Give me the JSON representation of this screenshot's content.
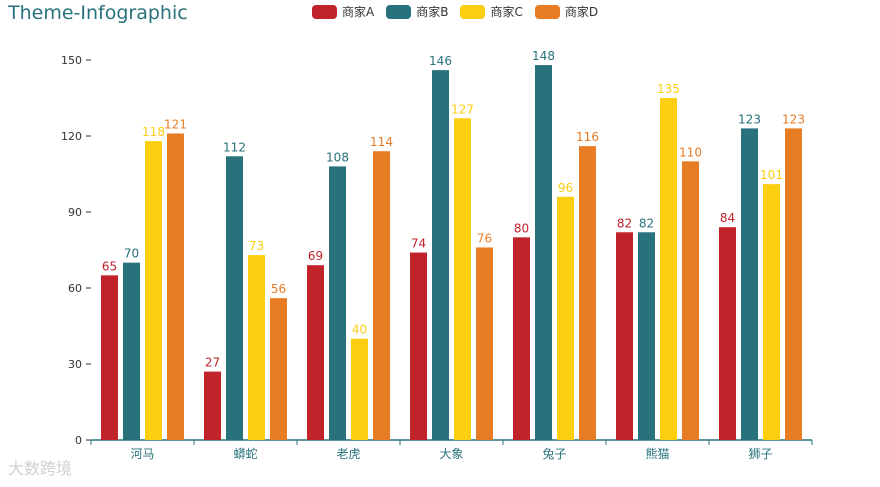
{
  "chart_data": {
    "type": "bar",
    "title": "Theme-Infographic",
    "categories": [
      "河马",
      "蟒蛇",
      "老虎",
      "大象",
      "兔子",
      "熊猫",
      "狮子"
    ],
    "series": [
      {
        "name": "商家A",
        "color": "#c1232b",
        "values": [
          65,
          27,
          69,
          74,
          80,
          82,
          84
        ]
      },
      {
        "name": "商家B",
        "color": "#27727b",
        "values": [
          70,
          112,
          108,
          146,
          148,
          82,
          123
        ]
      },
      {
        "name": "商家C",
        "color": "#fcce10",
        "values": [
          118,
          73,
          40,
          127,
          96,
          135,
          101
        ]
      },
      {
        "name": "商家D",
        "color": "#e87c25",
        "values": [
          121,
          56,
          114,
          76,
          116,
          110,
          123
        ]
      }
    ],
    "ylim": [
      0,
      150
    ],
    "yticks": [
      0,
      30,
      60,
      90,
      120,
      150
    ],
    "legend_position": "top-center",
    "grid": false
  },
  "watermark": "大数跨境"
}
